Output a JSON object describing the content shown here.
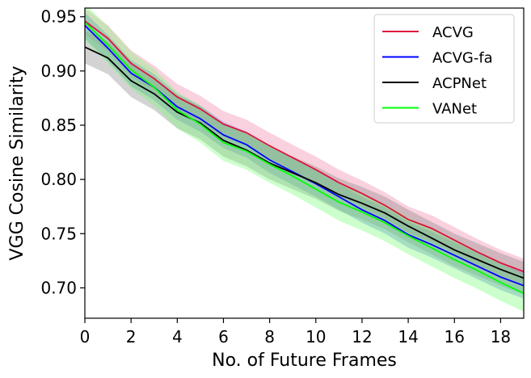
{
  "chart_data": {
    "type": "line",
    "xlabel": "No. of Future Frames",
    "ylabel": "VGG Cosine Similarity",
    "xlim": [
      0,
      19
    ],
    "ylim": [
      0.672,
      0.958
    ],
    "xticks": [
      0,
      2,
      4,
      6,
      8,
      10,
      12,
      14,
      16,
      18
    ],
    "yticks": [
      0.7,
      0.75,
      0.8,
      0.85,
      0.9,
      0.95
    ],
    "ytick_labels": [
      "0.70",
      "0.75",
      "0.80",
      "0.85",
      "0.90",
      "0.95"
    ],
    "grid": false,
    "legend_position": "top-right",
    "x": [
      0,
      1,
      2,
      3,
      4,
      5,
      6,
      7,
      8,
      9,
      10,
      11,
      12,
      13,
      14,
      15,
      16,
      17,
      18,
      19
    ],
    "series": [
      {
        "name": "ACVG",
        "color": "#dc143c",
        "band_color": "#f07aa0",
        "values": [
          0.946,
          0.93,
          0.907,
          0.893,
          0.876,
          0.865,
          0.851,
          0.843,
          0.831,
          0.82,
          0.809,
          0.797,
          0.787,
          0.776,
          0.763,
          0.755,
          0.744,
          0.733,
          0.723,
          0.715
        ],
        "band": 0.012
      },
      {
        "name": "ACVG-fa",
        "color": "#0000ff",
        "band_color": "#4a6fd0",
        "values": [
          0.942,
          0.921,
          0.898,
          0.885,
          0.867,
          0.856,
          0.841,
          0.832,
          0.818,
          0.807,
          0.796,
          0.784,
          0.772,
          0.762,
          0.749,
          0.74,
          0.73,
          0.72,
          0.71,
          0.702
        ],
        "band": 0.012
      },
      {
        "name": "ACPNet",
        "color": "#000000",
        "band_color": "#808080",
        "values": [
          0.922,
          0.912,
          0.891,
          0.879,
          0.862,
          0.852,
          0.836,
          0.827,
          0.815,
          0.806,
          0.797,
          0.786,
          0.778,
          0.769,
          0.757,
          0.746,
          0.735,
          0.726,
          0.717,
          0.709
        ],
        "band": 0.015
      },
      {
        "name": "VANet",
        "color": "#00ff00",
        "band_color": "#70ff70",
        "values": [
          0.945,
          0.924,
          0.901,
          0.885,
          0.864,
          0.851,
          0.834,
          0.826,
          0.814,
          0.803,
          0.791,
          0.779,
          0.77,
          0.76,
          0.748,
          0.737,
          0.726,
          0.716,
          0.705,
          0.695
        ],
        "band": 0.017
      }
    ]
  }
}
